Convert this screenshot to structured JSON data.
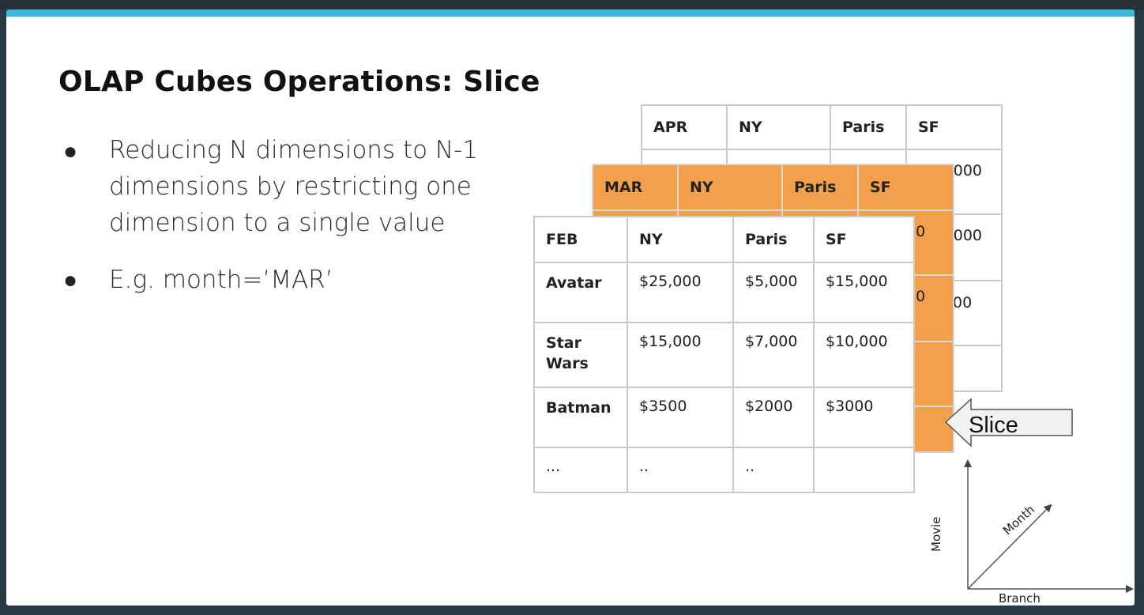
{
  "slide": {
    "title": "OLAP Cubes Operations: Slice",
    "bullets": [
      "Reducing N dimensions to N-1 dimensions by restricting one dimension to a single value",
      "E.g. month=’MAR’"
    ],
    "bullet_symbol": "●"
  },
  "cube": {
    "apr": {
      "headers": [
        "APR",
        "NY",
        "Paris",
        "SF"
      ],
      "partial_cells": [
        "000",
        "000",
        "00"
      ]
    },
    "mar": {
      "headers": [
        "MAR",
        "NY",
        "Paris",
        "SF"
      ],
      "partial_cells": [
        "00",
        "00",
        ")"
      ]
    },
    "feb": {
      "headers": [
        "FEB",
        "NY",
        "Paris",
        "SF"
      ],
      "rows": [
        {
          "movie": "Avatar",
          "ny": "$25,000",
          "paris": "$5,000",
          "sf": "$15,000"
        },
        {
          "movie": "Star Wars",
          "ny": "$15,000",
          "paris": "$7,000",
          "sf": "$10,000"
        },
        {
          "movie": "Batman",
          "ny": "$3500",
          "paris": "$2000",
          "sf": "$3000"
        },
        {
          "movie": "...",
          "ny": "..",
          "paris": "..",
          "sf": ""
        }
      ]
    }
  },
  "slice_arrow": {
    "label": "Slice",
    "fill": "#f2f2f2",
    "stroke": "#555555"
  },
  "axes": {
    "y": "Movie",
    "diagonal": "Month",
    "x": "Branch"
  },
  "colors": {
    "accent": "#3cb6d9",
    "slice": "#f2a04b"
  }
}
